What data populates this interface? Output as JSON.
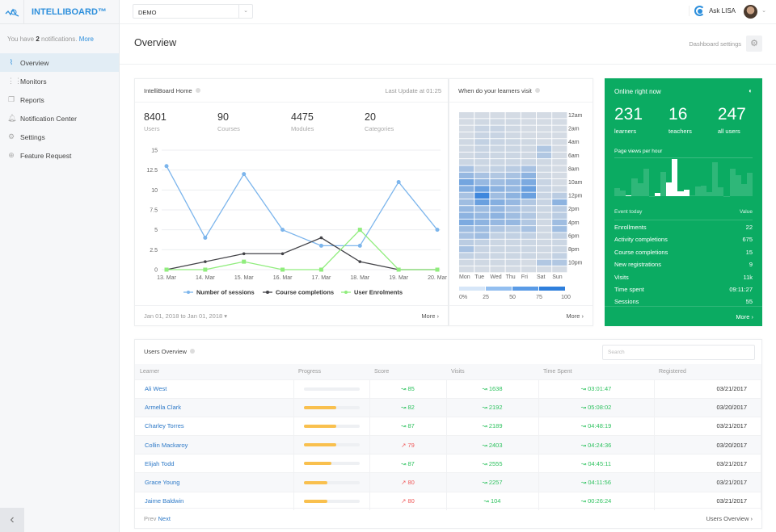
{
  "app": {
    "brand": "INTELLIBOARD™",
    "org": "DEMO",
    "ask": "Ask LISA"
  },
  "sidebar": {
    "notif_prefix": "You have",
    "notif_count": "2",
    "notif_suffix": "notifications.",
    "notif_more": "More",
    "items": [
      {
        "label": "Overview",
        "icon": "pulse"
      },
      {
        "label": "Monitors",
        "icon": "grid"
      },
      {
        "label": "Reports",
        "icon": "copy"
      },
      {
        "label": "Notification Center",
        "icon": "bell"
      },
      {
        "label": "Settings",
        "icon": "gear"
      },
      {
        "label": "Feature Request",
        "icon": "plus-circle"
      }
    ]
  },
  "page": {
    "title": "Overview",
    "dashboard_settings": "Dashboard settings"
  },
  "home": {
    "title": "IntelliBoard Home",
    "last_update": "Last Update at 01:25",
    "stats": [
      {
        "value": "8401",
        "label": "Users"
      },
      {
        "value": "90",
        "label": "Courses"
      },
      {
        "value": "4475",
        "label": "Modules"
      },
      {
        "value": "20",
        "label": "Categories"
      }
    ],
    "date_range": "Jan 01, 2018 to Jan 01, 2018",
    "more": "More"
  },
  "chart_data": {
    "type": "line",
    "categories": [
      "13. Mar",
      "14. Mar",
      "15. Mar",
      "16. Mar",
      "17. Mar",
      "18. Mar",
      "19. Mar",
      "20. Mar"
    ],
    "yticks": [
      "0",
      "2.5",
      "5",
      "7.5",
      "10",
      "12.5",
      "15"
    ],
    "ylim": [
      0,
      15
    ],
    "grid": true,
    "legend": "bottom",
    "series": [
      {
        "name": "Number of sessions",
        "color": "#7cb5ec",
        "values": [
          13,
          4,
          12,
          5,
          3,
          3,
          11,
          5
        ]
      },
      {
        "name": "Course completions",
        "color": "#434348",
        "values": [
          0,
          1,
          2,
          2,
          4,
          1,
          0,
          0
        ]
      },
      {
        "name": "User Enrolments",
        "color": "#90ed7d",
        "values": [
          0,
          0,
          1,
          0,
          0,
          5,
          0,
          0
        ]
      }
    ]
  },
  "heatmap": {
    "title": "When do your learners visit",
    "days": [
      "Mon",
      "Tue",
      "Wed",
      "Thu",
      "Fri",
      "Sat",
      "Sun"
    ],
    "hour_labels": [
      "12am",
      "2am",
      "4am",
      "6am",
      "8am",
      "10am",
      "12pm",
      "2pm",
      "4pm",
      "6pm",
      "8pm",
      "10pm"
    ],
    "scale": [
      "0%",
      "25",
      "50",
      "75",
      "100"
    ],
    "values": [
      [
        5,
        5,
        5,
        5,
        5,
        5,
        5
      ],
      [
        5,
        8,
        8,
        8,
        5,
        5,
        5
      ],
      [
        5,
        12,
        12,
        8,
        5,
        5,
        5
      ],
      [
        5,
        12,
        12,
        8,
        5,
        5,
        5
      ],
      [
        8,
        15,
        12,
        10,
        8,
        5,
        5
      ],
      [
        8,
        12,
        10,
        10,
        8,
        25,
        5
      ],
      [
        8,
        12,
        10,
        10,
        8,
        25,
        5
      ],
      [
        10,
        10,
        10,
        10,
        10,
        8,
        5
      ],
      [
        30,
        12,
        15,
        20,
        30,
        8,
        5
      ],
      [
        40,
        30,
        25,
        30,
        45,
        8,
        5
      ],
      [
        60,
        40,
        35,
        40,
        55,
        12,
        5
      ],
      [
        50,
        65,
        45,
        40,
        65,
        12,
        8
      ],
      [
        30,
        90,
        35,
        45,
        65,
        12,
        20
      ],
      [
        35,
        65,
        50,
        40,
        25,
        12,
        45
      ],
      [
        40,
        35,
        40,
        30,
        20,
        10,
        20
      ],
      [
        45,
        40,
        45,
        35,
        25,
        10,
        20
      ],
      [
        55,
        45,
        40,
        40,
        25,
        8,
        35
      ],
      [
        35,
        35,
        25,
        20,
        30,
        8,
        35
      ],
      [
        30,
        35,
        15,
        15,
        15,
        8,
        15
      ],
      [
        20,
        15,
        10,
        10,
        10,
        8,
        10
      ],
      [
        30,
        12,
        10,
        10,
        10,
        8,
        10
      ],
      [
        15,
        12,
        10,
        10,
        10,
        8,
        15
      ],
      [
        8,
        8,
        8,
        8,
        5,
        25,
        25
      ],
      [
        5,
        5,
        5,
        5,
        5,
        5,
        5
      ]
    ],
    "more": "More"
  },
  "online": {
    "title": "Online right now",
    "stats": [
      {
        "value": "231",
        "label": "learners"
      },
      {
        "value": "16",
        "label": "teachers"
      },
      {
        "value": "247",
        "label": "all users"
      }
    ],
    "page_views_label": "Page views per hour",
    "page_views": [
      {
        "v": 22
      },
      {
        "v": 16
      },
      {
        "v": 2,
        "hl": true
      },
      {
        "v": 48
      },
      {
        "v": 34
      },
      {
        "v": 73
      },
      {
        "v": 1
      },
      {
        "v": 8,
        "hl": true
      },
      {
        "v": 65
      },
      {
        "v": 36,
        "hl": true
      },
      {
        "v": 100,
        "hl": true
      },
      {
        "v": 14,
        "hl": true
      },
      {
        "v": 18,
        "hl": true
      },
      {
        "v": 2
      },
      {
        "v": 27
      },
      {
        "v": 28
      },
      {
        "v": 10
      },
      {
        "v": 92
      },
      {
        "v": 23
      },
      {
        "v": 1
      },
      {
        "v": 74
      },
      {
        "v": 57
      },
      {
        "v": 33
      },
      {
        "v": 62
      }
    ],
    "event_header": "Event today",
    "value_header": "Value",
    "events": [
      {
        "name": "Enrollments",
        "value": "22"
      },
      {
        "name": "Activity completions",
        "value": "675"
      },
      {
        "name": "Course completions",
        "value": "15"
      },
      {
        "name": "New registrations",
        "value": "9"
      },
      {
        "name": "Visits",
        "value": "11k"
      },
      {
        "name": "Time spent",
        "value": "09:11:27"
      },
      {
        "name": "Sessions",
        "value": "55"
      }
    ],
    "more": "More"
  },
  "users": {
    "title": "Users Overview",
    "search_placeholder": "Search",
    "columns": [
      "Learner",
      "Progress",
      "Score",
      "Visits",
      "Time Spent",
      "Registered"
    ],
    "rows": [
      {
        "name": "Ali West",
        "progress": 0,
        "score": "85",
        "score_trend": "up",
        "visits": "1638",
        "time": "03:01:47",
        "registered": "03/21/2017"
      },
      {
        "name": "Armella Clark",
        "progress": 58,
        "score": "82",
        "score_trend": "up",
        "visits": "2192",
        "time": "05:08:02",
        "registered": "03/20/2017"
      },
      {
        "name": "Charley Torres",
        "progress": 58,
        "score": "87",
        "score_trend": "up",
        "visits": "2189",
        "time": "04:48:19",
        "registered": "03/21/2017"
      },
      {
        "name": "Collin Mackaroy",
        "progress": 58,
        "score": "79",
        "score_trend": "down",
        "visits": "2403",
        "time": "04:24:36",
        "registered": "03/20/2017"
      },
      {
        "name": "Elijah Todd",
        "progress": 50,
        "score": "87",
        "score_trend": "up",
        "visits": "2555",
        "time": "04:45:11",
        "registered": "03/21/2017"
      },
      {
        "name": "Grace Young",
        "progress": 43,
        "score": "80",
        "score_trend": "down",
        "visits": "2257",
        "time": "04:11:56",
        "registered": "03/21/2017"
      },
      {
        "name": "Jaime Baldwin",
        "progress": 43,
        "score": "80",
        "score_trend": "down",
        "visits": "104",
        "time": "00:26:24",
        "registered": "03/21/2017"
      }
    ],
    "prev": "Prev",
    "next": "Next",
    "footer_link": "Users Overview"
  },
  "colors": {
    "brand": "#2d8fdc",
    "green_panel": "#0bab62",
    "progress": "#f9c04e",
    "up": "#2ec25f",
    "down": "#ef5a5a"
  }
}
